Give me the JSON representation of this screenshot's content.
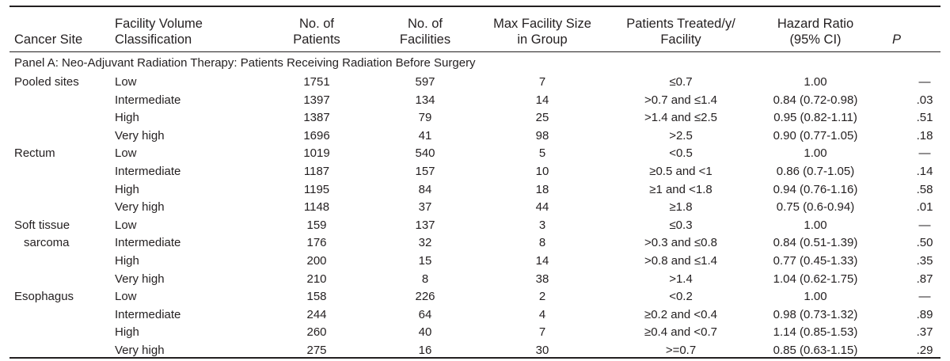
{
  "headers": {
    "cancer_site": "Cancer Site",
    "volume_class": [
      "Facility Volume",
      "Classification"
    ],
    "patients": [
      "No. of",
      "Patients"
    ],
    "facilities": [
      "No. of",
      "Facilities"
    ],
    "max_size": [
      "Max Facility Size",
      "in Group"
    ],
    "treated": [
      "Patients Treated/y/",
      "Facility"
    ],
    "hazard": [
      "Hazard Ratio",
      "(95% CI)"
    ],
    "p": "P"
  },
  "panel_title": "Panel A: Neo-Adjuvant Radiation Therapy: Patients Receiving Radiation Before Surgery",
  "groups": [
    {
      "site_lines": [
        "Pooled sites"
      ],
      "rows": [
        {
          "classification": "Low",
          "patients": "1751",
          "facilities": "597",
          "max_size": "7",
          "treated": "≤0.7",
          "hazard": "1.00",
          "p": "—"
        },
        {
          "classification": "Intermediate",
          "patients": "1397",
          "facilities": "134",
          "max_size": "14",
          "treated": ">0.7 and ≤1.4",
          "hazard": "0.84 (0.72-0.98)",
          "p": ".03"
        },
        {
          "classification": "High",
          "patients": "1387",
          "facilities": "79",
          "max_size": "25",
          "treated": ">1.4 and ≤2.5",
          "hazard": "0.95 (0.82-1.11)",
          "p": ".51"
        },
        {
          "classification": "Very high",
          "patients": "1696",
          "facilities": "41",
          "max_size": "98",
          "treated": ">2.5",
          "hazard": "0.90 (0.77-1.05)",
          "p": ".18"
        }
      ]
    },
    {
      "site_lines": [
        "Rectum"
      ],
      "rows": [
        {
          "classification": "Low",
          "patients": "1019",
          "facilities": "540",
          "max_size": "5",
          "treated": "<0.5",
          "hazard": "1.00",
          "p": "—"
        },
        {
          "classification": "Intermediate",
          "patients": "1187",
          "facilities": "157",
          "max_size": "10",
          "treated": "≥0.5 and <1",
          "hazard": "0.86 (0.7-1.05)",
          "p": ".14"
        },
        {
          "classification": "High",
          "patients": "1195",
          "facilities": "84",
          "max_size": "18",
          "treated": "≥1 and <1.8",
          "hazard": "0.94 (0.76-1.16)",
          "p": ".58"
        },
        {
          "classification": "Very high",
          "patients": "1148",
          "facilities": "37",
          "max_size": "44",
          "treated": "≥1.8",
          "hazard": "0.75 (0.6-0.94)",
          "p": ".01"
        }
      ]
    },
    {
      "site_lines": [
        "Soft tissue",
        "sarcoma"
      ],
      "rows": [
        {
          "classification": "Low",
          "patients": "159",
          "facilities": "137",
          "max_size": "3",
          "treated": "≤0.3",
          "hazard": "1.00",
          "p": "—"
        },
        {
          "classification": "Intermediate",
          "patients": "176",
          "facilities": "32",
          "max_size": "8",
          "treated": ">0.3 and ≤0.8",
          "hazard": "0.84 (0.51-1.39)",
          "p": ".50"
        },
        {
          "classification": "High",
          "patients": "200",
          "facilities": "15",
          "max_size": "14",
          "treated": ">0.8 and ≤1.4",
          "hazard": "0.77 (0.45-1.33)",
          "p": ".35"
        },
        {
          "classification": "Very high",
          "patients": "210",
          "facilities": "8",
          "max_size": "38",
          "treated": ">1.4",
          "hazard": "1.04 (0.62-1.75)",
          "p": ".87"
        }
      ]
    },
    {
      "site_lines": [
        "Esophagus"
      ],
      "rows": [
        {
          "classification": "Low",
          "patients": "158",
          "facilities": "226",
          "max_size": "2",
          "treated": "<0.2",
          "hazard": "1.00",
          "p": "—"
        },
        {
          "classification": "Intermediate",
          "patients": "244",
          "facilities": "64",
          "max_size": "4",
          "treated": "≥0.2 and <0.4",
          "hazard": "0.98 (0.73-1.32)",
          "p": ".89"
        },
        {
          "classification": "High",
          "patients": "260",
          "facilities": "40",
          "max_size": "7",
          "treated": "≥0.4 and <0.7",
          "hazard": "1.14 (0.85-1.53)",
          "p": ".37"
        },
        {
          "classification": "Very high",
          "patients": "275",
          "facilities": "16",
          "max_size": "30",
          "treated": ">=0.7",
          "hazard": "0.85 (0.63-1.15)",
          "p": ".29"
        }
      ]
    }
  ]
}
